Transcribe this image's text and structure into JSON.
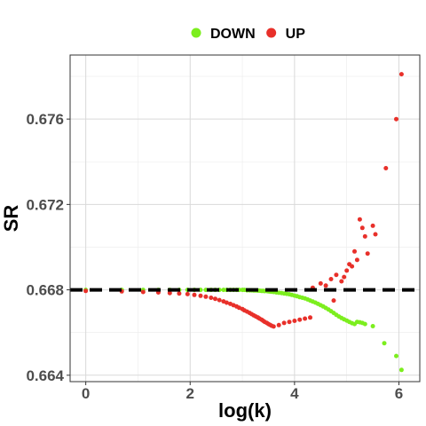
{
  "chart_data": {
    "type": "scatter",
    "xlabel": "log(k)",
    "ylabel": "SR",
    "xlim": [
      -0.3,
      6.4
    ],
    "ylim": [
      0.6637,
      0.679
    ],
    "x_ticks": [
      0,
      2,
      4,
      6
    ],
    "x_tick_labels": [
      "0",
      "2",
      "4",
      "6"
    ],
    "y_ticks": [
      0.664,
      0.668,
      0.672,
      0.676
    ],
    "y_tick_labels": [
      "0.664",
      "0.668",
      "0.672",
      "0.676"
    ],
    "grid": true,
    "legend_position": "top",
    "reference_line": {
      "y": 0.668,
      "style": "dashed",
      "color": "#000000"
    },
    "series": [
      {
        "name": "DOWN",
        "color": "#7CEE1E",
        "points": [
          [
            0,
            0.668
          ],
          [
            0.69,
            0.668
          ],
          [
            1.1,
            0.668
          ],
          [
            1.39,
            0.668
          ],
          [
            1.61,
            0.668
          ],
          [
            1.79,
            0.668
          ],
          [
            1.95,
            0.668
          ],
          [
            2.08,
            0.668
          ],
          [
            2.2,
            0.668
          ],
          [
            2.3,
            0.668
          ],
          [
            2.4,
            0.668
          ],
          [
            2.48,
            0.668
          ],
          [
            2.56,
            0.668
          ],
          [
            2.64,
            0.668
          ],
          [
            2.7,
            0.668
          ],
          [
            2.77,
            0.668
          ],
          [
            2.83,
            0.668
          ],
          [
            2.89,
            0.668
          ],
          [
            2.94,
            0.668
          ],
          [
            3.0,
            0.668
          ],
          [
            3.04,
            0.668
          ],
          [
            3.09,
            0.66798
          ],
          [
            3.14,
            0.66798
          ],
          [
            3.18,
            0.66798
          ],
          [
            3.22,
            0.66797
          ],
          [
            3.26,
            0.66797
          ],
          [
            3.3,
            0.66796
          ],
          [
            3.33,
            0.66796
          ],
          [
            3.37,
            0.66795
          ],
          [
            3.4,
            0.66795
          ],
          [
            3.43,
            0.66794
          ],
          [
            3.47,
            0.66794
          ],
          [
            3.5,
            0.66793
          ],
          [
            3.53,
            0.66792
          ],
          [
            3.56,
            0.66791
          ],
          [
            3.6,
            0.6679
          ],
          [
            3.65,
            0.66788
          ],
          [
            3.7,
            0.66786
          ],
          [
            3.75,
            0.66785
          ],
          [
            3.8,
            0.66783
          ],
          [
            3.85,
            0.66781
          ],
          [
            3.9,
            0.66779
          ],
          [
            3.95,
            0.66776
          ],
          [
            4.0,
            0.66773
          ],
          [
            4.05,
            0.6677
          ],
          [
            4.1,
            0.66766
          ],
          [
            4.15,
            0.66763
          ],
          [
            4.2,
            0.6676
          ],
          [
            4.25,
            0.66755
          ],
          [
            4.3,
            0.6675
          ],
          [
            4.35,
            0.66745
          ],
          [
            4.4,
            0.6674
          ],
          [
            4.45,
            0.66734
          ],
          [
            4.5,
            0.66728
          ],
          [
            4.55,
            0.66722
          ],
          [
            4.6,
            0.66715
          ],
          [
            4.65,
            0.66708
          ],
          [
            4.7,
            0.667
          ],
          [
            4.75,
            0.66692
          ],
          [
            4.8,
            0.66683
          ],
          [
            4.85,
            0.66675
          ],
          [
            4.9,
            0.66668
          ],
          [
            4.95,
            0.66662
          ],
          [
            5.0,
            0.66656
          ],
          [
            5.05,
            0.6665
          ],
          [
            5.1,
            0.66644
          ],
          [
            5.15,
            0.6664
          ],
          [
            5.2,
            0.6665
          ],
          [
            5.25,
            0.66648
          ],
          [
            5.3,
            0.66645
          ],
          [
            5.35,
            0.6664
          ],
          [
            5.5,
            0.6663
          ],
          [
            5.72,
            0.6655
          ],
          [
            5.95,
            0.6649
          ],
          [
            6.05,
            0.66425
          ]
        ]
      },
      {
        "name": "UP",
        "color": "#E8302A",
        "points": [
          [
            0,
            0.66795
          ],
          [
            0.69,
            0.66793
          ],
          [
            1.1,
            0.6679
          ],
          [
            1.39,
            0.66788
          ],
          [
            1.61,
            0.66785
          ],
          [
            1.79,
            0.66783
          ],
          [
            1.95,
            0.6678
          ],
          [
            2.08,
            0.66776
          ],
          [
            2.2,
            0.66772
          ],
          [
            2.3,
            0.66768
          ],
          [
            2.4,
            0.66763
          ],
          [
            2.48,
            0.66758
          ],
          [
            2.56,
            0.66752
          ],
          [
            2.64,
            0.66746
          ],
          [
            2.7,
            0.6674
          ],
          [
            2.77,
            0.66734
          ],
          [
            2.83,
            0.66728
          ],
          [
            2.89,
            0.66722
          ],
          [
            2.94,
            0.66716
          ],
          [
            3.0,
            0.6671
          ],
          [
            3.04,
            0.66704
          ],
          [
            3.09,
            0.66698
          ],
          [
            3.14,
            0.66692
          ],
          [
            3.18,
            0.66686
          ],
          [
            3.22,
            0.6668
          ],
          [
            3.26,
            0.66675
          ],
          [
            3.3,
            0.6667
          ],
          [
            3.33,
            0.66665
          ],
          [
            3.37,
            0.6666
          ],
          [
            3.4,
            0.66655
          ],
          [
            3.43,
            0.6665
          ],
          [
            3.47,
            0.66645
          ],
          [
            3.5,
            0.6664
          ],
          [
            3.53,
            0.66636
          ],
          [
            3.56,
            0.66632
          ],
          [
            3.6,
            0.66628
          ],
          [
            3.7,
            0.66635
          ],
          [
            3.8,
            0.66645
          ],
          [
            3.9,
            0.6665
          ],
          [
            4.0,
            0.66655
          ],
          [
            4.1,
            0.6666
          ],
          [
            4.2,
            0.66665
          ],
          [
            4.3,
            0.6667
          ],
          [
            4.35,
            0.6681
          ],
          [
            4.5,
            0.6683
          ],
          [
            4.6,
            0.6682
          ],
          [
            4.7,
            0.6685
          ],
          [
            4.75,
            0.6675
          ],
          [
            4.8,
            0.6687
          ],
          [
            4.9,
            0.6684
          ],
          [
            4.95,
            0.6686
          ],
          [
            5.0,
            0.6689
          ],
          [
            5.05,
            0.6692
          ],
          [
            5.1,
            0.6691
          ],
          [
            5.15,
            0.6698
          ],
          [
            5.2,
            0.6694
          ],
          [
            5.25,
            0.6713
          ],
          [
            5.3,
            0.6709
          ],
          [
            5.35,
            0.6705
          ],
          [
            5.4,
            0.6697
          ],
          [
            5.5,
            0.671
          ],
          [
            5.55,
            0.6706
          ],
          [
            5.75,
            0.6737
          ],
          [
            5.95,
            0.676
          ],
          [
            6.05,
            0.6781
          ]
        ]
      }
    ]
  }
}
